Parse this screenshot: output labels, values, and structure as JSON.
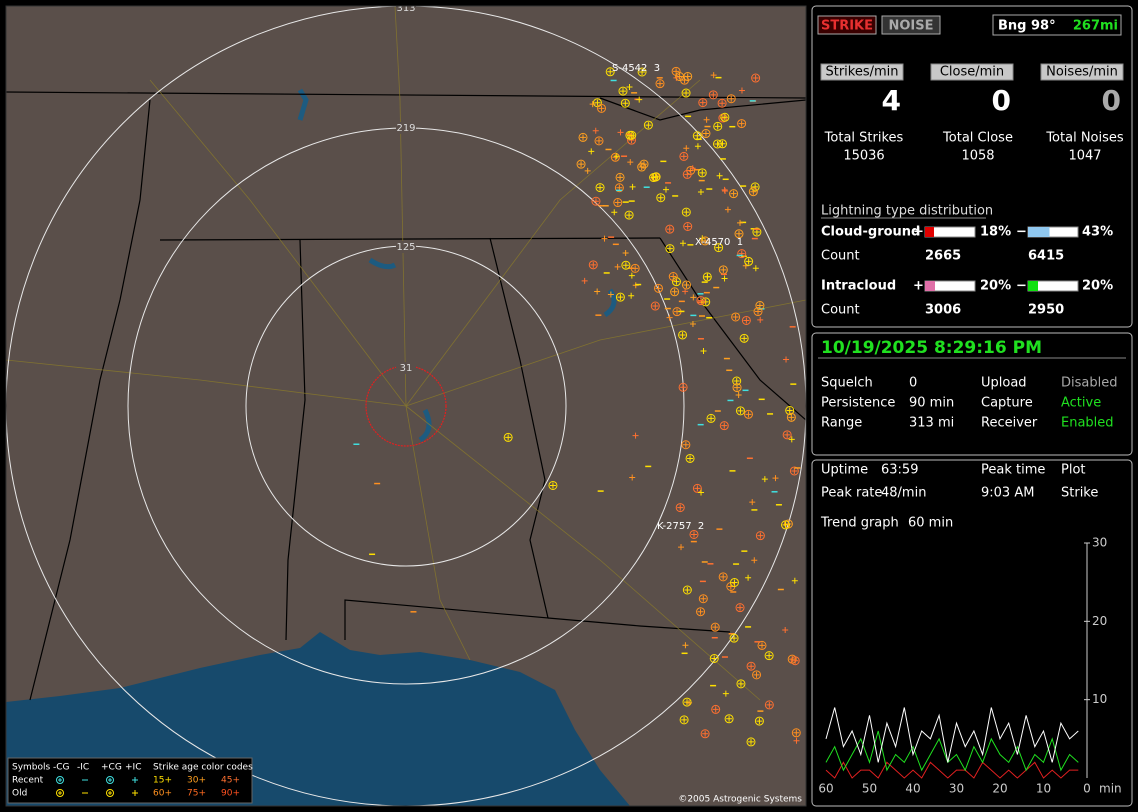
{
  "map": {
    "ring_labels": [
      "31",
      "125",
      "219",
      "313"
    ],
    "station_labels": [
      "S-4542  3",
      "X-4570  1",
      "K-2757  2"
    ],
    "legend": {
      "symbols": "Symbols",
      "columns": [
        "-CG",
        "-IC",
        "+CG",
        "+IC"
      ],
      "age_title": "Strike age color codes",
      "rows": [
        {
          "label": "Recent",
          "ages": [
            "15+",
            "30+",
            "45+"
          ]
        },
        {
          "label": "Old",
          "ages": [
            "60+",
            "75+",
            "90+"
          ]
        }
      ]
    },
    "copyright": "©2005 Astrogenic Systems"
  },
  "status": {
    "strike_button": "STRIKE",
    "noise_button": "NOISE",
    "bearing": "Bng 98°",
    "distance": "267mi",
    "rates": [
      {
        "label": "Strikes/min",
        "value": 4
      },
      {
        "label": "Close/min",
        "value": 0
      },
      {
        "label": "Noises/min",
        "value": 0
      }
    ],
    "totals": [
      {
        "label": "Total Strikes",
        "value": 15036
      },
      {
        "label": "Total Close",
        "value": 1058
      },
      {
        "label": "Total Noises",
        "value": 1047
      }
    ]
  },
  "distribution": {
    "title": "Lightning type distribution",
    "count_label": "Count",
    "types": [
      {
        "label": "Cloud-ground",
        "positive": {
          "sign": "+",
          "percent": {
            "value": 18,
            "label": "18%"
          },
          "count": 2665,
          "color": "#e00000"
        },
        "negative": {
          "sign": "−",
          "percent": {
            "value": 43,
            "label": "43%"
          },
          "count": 6415,
          "color": "#90c8f0"
        }
      },
      {
        "label": "Intracloud",
        "positive": {
          "sign": "+",
          "percent": {
            "value": 20,
            "label": "20%"
          },
          "count": 3006,
          "color": "#e070a8"
        },
        "negative": {
          "sign": "−",
          "percent": {
            "value": 20,
            "label": "20%"
          },
          "count": 2950,
          "color": "#10e010"
        }
      }
    ]
  },
  "datetime": "10/19/2025 8:29:16 PM",
  "settings": {
    "rows": [
      [
        "Squelch",
        "0",
        "Upload",
        "Disabled"
      ],
      [
        "Persistence",
        "90 min",
        "Capture",
        "Active"
      ],
      [
        "Range",
        "313 mi",
        "Receiver",
        "Enabled"
      ]
    ],
    "status_colors": [
      "#a8a8a8",
      "#20e020",
      "#20e020"
    ]
  },
  "stats": {
    "uptime_label": "Uptime",
    "uptime": "63:59",
    "peak_time_label": "Peak time",
    "peak_time": "9:03 AM",
    "plot_label": "Plot",
    "peak_rate_label": "Peak rate",
    "peak_rate": "48/min",
    "plot": "Strike",
    "trend_label": "Trend graph",
    "trend_window": "60 min"
  },
  "trend": {
    "ylim": [
      0,
      30
    ],
    "yticks": [
      10,
      20,
      30
    ],
    "xlim": [
      60,
      0
    ],
    "xticks": [
      60,
      50,
      40,
      30,
      20,
      10,
      0
    ],
    "x_unit": "min",
    "x": [
      60,
      58,
      56,
      54,
      52,
      50,
      48,
      46,
      44,
      42,
      40,
      38,
      36,
      34,
      32,
      30,
      28,
      26,
      24,
      22,
      20,
      18,
      16,
      14,
      12,
      10,
      8,
      6,
      4,
      2
    ],
    "series": [
      {
        "color": "#ffffff",
        "values": [
          5,
          9,
          4,
          6,
          3,
          8,
          2,
          7,
          4,
          9,
          3,
          6,
          5,
          8,
          2,
          7,
          4,
          6,
          3,
          9,
          5,
          7,
          3,
          8,
          4,
          6,
          2,
          7,
          5,
          6
        ]
      },
      {
        "color": "#20e020",
        "values": [
          2,
          4,
          1,
          3,
          5,
          2,
          6,
          1,
          3,
          2,
          4,
          1,
          3,
          5,
          2,
          3,
          1,
          4,
          2,
          5,
          3,
          2,
          4,
          1,
          3,
          2,
          5,
          1,
          3,
          2
        ]
      },
      {
        "color": "#e02020",
        "values": [
          1,
          0,
          2,
          0,
          1,
          1,
          0,
          2,
          1,
          0,
          1,
          0,
          2,
          1,
          0,
          1,
          1,
          0,
          2,
          1,
          0,
          1,
          0,
          1,
          2,
          0,
          1,
          0,
          1,
          1
        ]
      }
    ]
  }
}
